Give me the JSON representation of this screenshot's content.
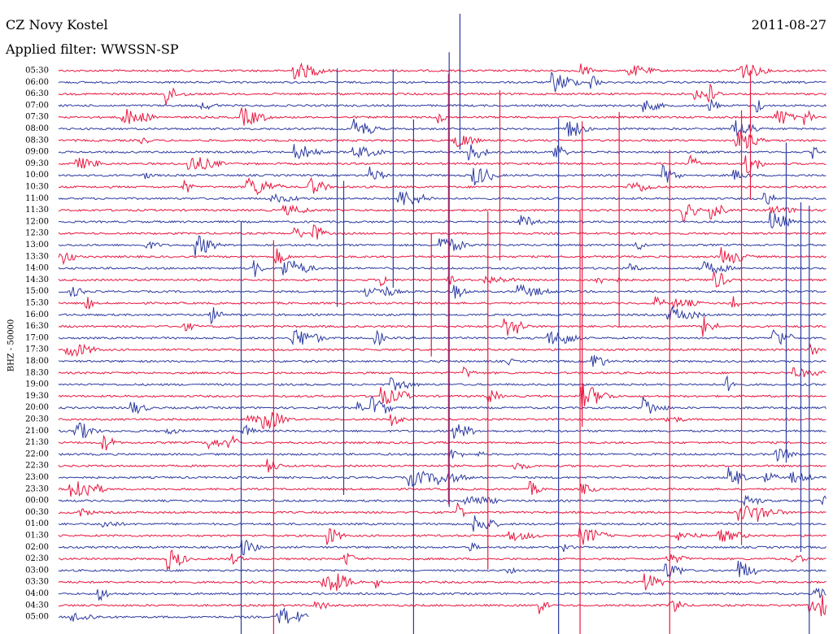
{
  "header": {
    "station": "CZ Novy Kostel",
    "date": "2011-08-27",
    "filter": "Applied filter: WWSSN-SP"
  },
  "axis_label": "BHZ - 50000",
  "rows": [
    "05:30",
    "06:00",
    "06:30",
    "07:00",
    "07:30",
    "08:00",
    "08:30",
    "09:00",
    "09:30",
    "10:00",
    "10:30",
    "11:00",
    "11:30",
    "12:00",
    "12:30",
    "13:00",
    "13:30",
    "14:00",
    "14:30",
    "15:00",
    "15:30",
    "16:00",
    "16:30",
    "17:00",
    "17:30",
    "18:00",
    "18:30",
    "19:00",
    "19:30",
    "20:00",
    "20:30",
    "21:00",
    "21:30",
    "22:00",
    "22:30",
    "23:00",
    "23:30",
    "00:00",
    "00:30",
    "01:00",
    "01:30",
    "02:00",
    "02:30",
    "03:00",
    "03:30",
    "04:00",
    "04:30",
    "05:00"
  ]
}
